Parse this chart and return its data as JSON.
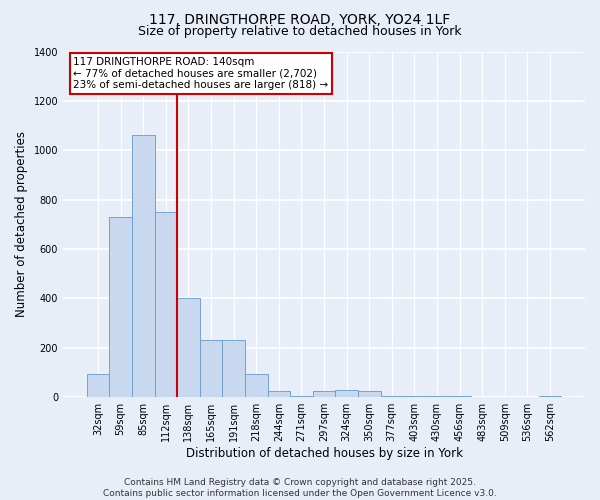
{
  "title_line1": "117, DRINGTHORPE ROAD, YORK, YO24 1LF",
  "title_line2": "Size of property relative to detached houses in York",
  "xlabel": "Distribution of detached houses by size in York",
  "ylabel": "Number of detached properties",
  "categories": [
    "32sqm",
    "59sqm",
    "85sqm",
    "112sqm",
    "138sqm",
    "165sqm",
    "191sqm",
    "218sqm",
    "244sqm",
    "271sqm",
    "297sqm",
    "324sqm",
    "350sqm",
    "377sqm",
    "403sqm",
    "430sqm",
    "456sqm",
    "483sqm",
    "509sqm",
    "536sqm",
    "562sqm"
  ],
  "values": [
    95,
    730,
    1060,
    750,
    400,
    230,
    230,
    95,
    25,
    5,
    25,
    30,
    25,
    5,
    5,
    5,
    5,
    0,
    0,
    0,
    5
  ],
  "bar_color": "#c8d8ee",
  "bar_edge_color": "#6699cc",
  "vline_pos": 3.5,
  "vline_color": "#cc0000",
  "annotation_text": "117 DRINGTHORPE ROAD: 140sqm\n← 77% of detached houses are smaller (2,702)\n23% of semi-detached houses are larger (818) →",
  "annotation_box_color": "#cc0000",
  "ylim": [
    0,
    1400
  ],
  "yticks": [
    0,
    200,
    400,
    600,
    800,
    1000,
    1200,
    1400
  ],
  "background_color": "#e8eef8",
  "plot_bg_color": "#e8eef8",
  "grid_color": "#ffffff",
  "footer_text": "Contains HM Land Registry data © Crown copyright and database right 2025.\nContains public sector information licensed under the Open Government Licence v3.0.",
  "title_fontsize": 10,
  "subtitle_fontsize": 9,
  "axis_label_fontsize": 8.5,
  "tick_fontsize": 7,
  "footer_fontsize": 6.5,
  "annotation_fontsize": 7.5
}
